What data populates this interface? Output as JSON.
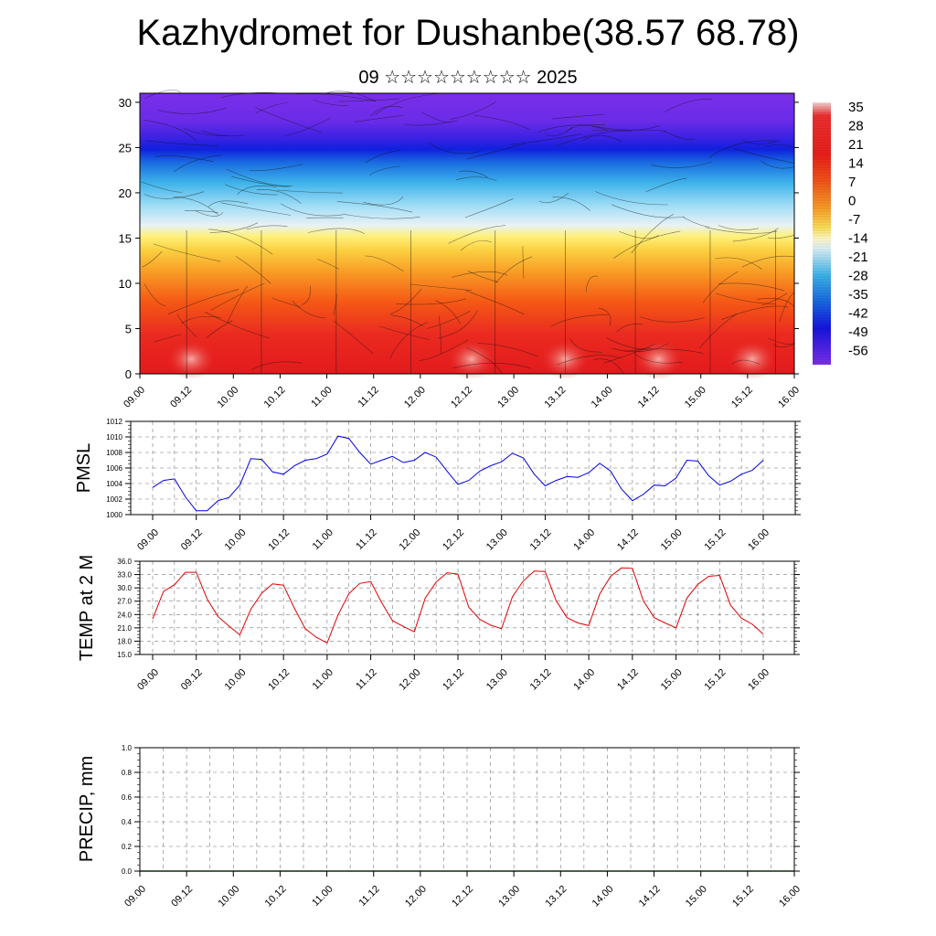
{
  "header": {
    "title": "Kazhydromet for Dushanbe(38.57 68.78)",
    "subtitle": "09 ☆☆☆☆☆☆☆☆☆ 2025"
  },
  "colors": {
    "pmsl_line": "#0000e6",
    "temp_line": "#e00000",
    "precip_line": "#2e7d32"
  },
  "time_ticks": [
    "09.00",
    "09.12",
    "10.00",
    "10.12",
    "11.00",
    "11.12",
    "12.00",
    "12.12",
    "13.00",
    "13.12",
    "14.00",
    "14.12",
    "15.00",
    "15.12",
    "16.00"
  ],
  "chart_data": [
    {
      "type": "heatmap",
      "panel": "cross-section",
      "title": "",
      "xlabel": "",
      "ylabel": "",
      "x": [
        "09.00",
        "09.12",
        "10.00",
        "10.12",
        "11.00",
        "11.12",
        "12.00",
        "12.12",
        "13.00",
        "13.12",
        "14.00",
        "14.12",
        "15.00",
        "15.12",
        "16.00"
      ],
      "ylim": [
        0,
        31
      ],
      "yticks": [
        0,
        5,
        10,
        15,
        20,
        25,
        30
      ],
      "temperature_by_height": [
        {
          "y": 0,
          "value": 30
        },
        {
          "y": 5,
          "value": 24
        },
        {
          "y": 10,
          "value": 14
        },
        {
          "y": 15,
          "value": 0
        },
        {
          "y": 18,
          "value": -14
        },
        {
          "y": 21,
          "value": -28
        },
        {
          "y": 24,
          "value": -42
        },
        {
          "y": 25,
          "value": -56
        },
        {
          "y": 27,
          "value": -49
        },
        {
          "y": 31,
          "value": -56
        }
      ],
      "colorbar": {
        "labels": [
          "35",
          "28",
          "21",
          "14",
          "7",
          "0",
          "-7",
          "-14",
          "-21",
          "-28",
          "-35",
          "-42",
          "-49",
          "-56"
        ],
        "colors": [
          "#f2d0d0",
          "#ea2a20",
          "#e31a1c",
          "#f03b12",
          "#f77a17",
          "#fbb12e",
          "#fee05d",
          "#f3f0c0",
          "#c7e9f4",
          "#4dbde8",
          "#1e8fe0",
          "#1d4fe0",
          "#2010e0",
          "#7b2fe8"
        ]
      },
      "grid": false,
      "legend": "colorbar right"
    },
    {
      "type": "line",
      "panel": "pmsl",
      "ylabel": "PMSL",
      "xlabel": "",
      "ylim": [
        1000,
        1012
      ],
      "yticks": [
        "1000",
        "1002",
        "1004",
        "1006",
        "1008",
        "1010",
        "1012"
      ],
      "x": [
        "09.00",
        "09.03",
        "09.06",
        "09.09",
        "09.12",
        "09.15",
        "09.18",
        "09.21",
        "10.00",
        "10.03",
        "10.06",
        "10.09",
        "10.12",
        "10.15",
        "10.18",
        "10.21",
        "11.00",
        "11.03",
        "11.06",
        "11.09",
        "11.12",
        "11.15",
        "11.18",
        "11.21",
        "12.00",
        "12.03",
        "12.06",
        "12.09",
        "12.12",
        "12.15",
        "12.18",
        "12.21",
        "13.00",
        "13.03",
        "13.06",
        "13.09",
        "13.12",
        "13.15",
        "13.18",
        "13.21",
        "14.00",
        "14.03",
        "14.06",
        "14.09",
        "14.12",
        "14.15",
        "14.18",
        "14.21",
        "15.00",
        "15.03",
        "15.06",
        "15.09",
        "15.12",
        "15.15",
        "15.18",
        "15.21",
        "16.00"
      ],
      "values": [
        1003.5,
        1004.4,
        1004.6,
        1002.3,
        1000.5,
        1000.5,
        1001.8,
        1002.2,
        1003.8,
        1007.2,
        1007.1,
        1005.5,
        1005.2,
        1006.3,
        1007.0,
        1007.2,
        1007.8,
        1010.1,
        1009.8,
        1008.0,
        1006.5,
        1007.0,
        1007.5,
        1006.7,
        1007.0,
        1008.0,
        1007.4,
        1005.6,
        1003.9,
        1004.4,
        1005.6,
        1006.3,
        1006.8,
        1007.9,
        1007.3,
        1005.2,
        1003.7,
        1004.4,
        1004.9,
        1004.8,
        1005.4,
        1006.6,
        1005.6,
        1003.3,
        1001.8,
        1002.6,
        1003.8,
        1003.7,
        1004.7,
        1007.0,
        1006.9,
        1005.0,
        1003.8,
        1004.3,
        1005.2,
        1005.7,
        1007.0
      ],
      "grid": true
    },
    {
      "type": "line",
      "panel": "temp2m",
      "ylabel": "TEMP at 2 M",
      "xlabel": "",
      "ylim": [
        15,
        36
      ],
      "yticks": [
        "15.0",
        "18.0",
        "21.0",
        "24.0",
        "27.0",
        "30.0",
        "33.0",
        "36.0"
      ],
      "x": [
        "09.00",
        "09.03",
        "09.06",
        "09.09",
        "09.12",
        "09.15",
        "09.18",
        "09.21",
        "10.00",
        "10.03",
        "10.06",
        "10.09",
        "10.12",
        "10.15",
        "10.18",
        "10.21",
        "11.00",
        "11.03",
        "11.06",
        "11.09",
        "11.12",
        "11.15",
        "11.18",
        "11.21",
        "12.00",
        "12.03",
        "12.06",
        "12.09",
        "12.12",
        "12.15",
        "12.18",
        "12.21",
        "13.00",
        "13.03",
        "13.06",
        "13.09",
        "13.12",
        "13.15",
        "13.18",
        "13.21",
        "14.00",
        "14.03",
        "14.06",
        "14.09",
        "14.12",
        "14.15",
        "14.18",
        "14.21",
        "15.00",
        "15.03",
        "15.06",
        "15.09",
        "15.12",
        "15.15",
        "15.18",
        "15.21",
        "16.00"
      ],
      "values": [
        23.0,
        29.2,
        30.7,
        33.5,
        33.5,
        27.5,
        23.5,
        21.4,
        19.4,
        25.2,
        28.8,
        30.9,
        30.6,
        25.4,
        20.8,
        18.9,
        17.6,
        23.9,
        28.7,
        31.0,
        31.4,
        26.7,
        22.6,
        21.3,
        20.1,
        27.7,
        31.3,
        33.4,
        33.1,
        25.6,
        22.9,
        21.6,
        20.8,
        28.0,
        31.6,
        33.8,
        33.7,
        27.1,
        23.3,
        22.1,
        21.5,
        28.6,
        32.6,
        34.5,
        34.4,
        27.1,
        23.3,
        22.1,
        21.0,
        27.7,
        30.8,
        32.6,
        32.8,
        26.1,
        23.2,
        21.8,
        19.6
      ],
      "grid": true
    },
    {
      "type": "line",
      "panel": "precip",
      "ylabel": "PRECIP, mm",
      "xlabel": "",
      "ylim": [
        0,
        1
      ],
      "yticks": [
        "0.0",
        "0.2",
        "0.4",
        "0.6",
        "0.8",
        "1.0"
      ],
      "x": [
        "09.00",
        "16.00"
      ],
      "values": [
        0,
        0
      ],
      "grid": true
    }
  ]
}
